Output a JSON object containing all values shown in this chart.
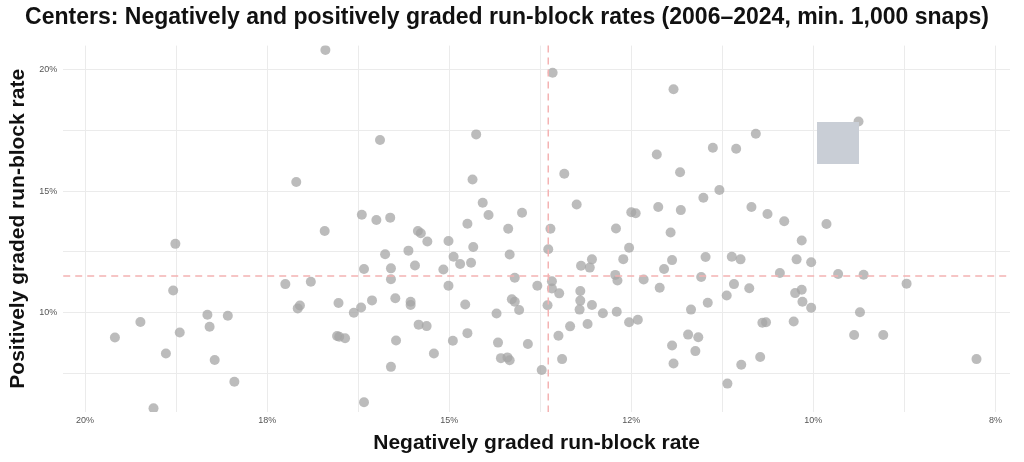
{
  "chart_data": {
    "type": "scatter",
    "title": "Centers: Negatively and positively graded run-block rates (2006–2024, min. 1,000 snaps)",
    "xlabel": "Negatively graded run-block rate",
    "ylabel": "Positively graded run-block rate",
    "xlim": [
      20.3,
      7.3
    ],
    "xticks": [
      {
        "value": 20,
        "label": "20%"
      },
      {
        "value": 18.75,
        "label": null
      },
      {
        "value": 17.5,
        "label": "18%"
      },
      {
        "value": 16.25,
        "label": null
      },
      {
        "value": 15,
        "label": "15%"
      },
      {
        "value": 13.75,
        "label": null
      },
      {
        "value": 12.5,
        "label": "12%"
      },
      {
        "value": 11.25,
        "label": null
      },
      {
        "value": 10,
        "label": "10%"
      },
      {
        "value": 8.75,
        "label": null
      },
      {
        "value": 7.5,
        "label": "8%"
      }
    ],
    "ylim": [
      5.9,
      21
    ],
    "yticks": [
      {
        "value": 7.5,
        "label": null
      },
      {
        "value": 10,
        "label": "10%"
      },
      {
        "value": 12.5,
        "label": null
      },
      {
        "value": 15,
        "label": "15%"
      },
      {
        "value": 17.5,
        "label": null
      },
      {
        "value": 20,
        "label": "20%"
      }
    ],
    "grid": true,
    "marker": "circle",
    "ref_lines": [
      {
        "axis": "x",
        "value": 13.64,
        "color": "#f4b3b3",
        "line_style": "dashed"
      },
      {
        "axis": "y",
        "value": 11.5,
        "color": "#f4b3b3",
        "line_style": "dashed"
      }
    ],
    "series": [
      {
        "color": "#a6a6a6",
        "x": [
          17.1,
          18.76,
          17.25,
          18.79,
          17.05,
          17.08,
          19.24,
          18.32,
          18.04,
          18.29,
          19.59,
          18.7,
          18.89,
          18.22,
          17.95,
          19.06,
          16.7,
          15.95,
          14.63,
          14.68,
          16.71,
          16.2,
          16.0,
          15.81,
          14.54,
          14.46,
          14.0,
          14.75,
          14.19,
          15.43,
          15.39,
          15.3,
          15.01,
          14.67,
          15.88,
          15.56,
          14.17,
          14.94,
          14.85,
          14.7,
          15.47,
          16.17,
          15.8,
          15.08,
          15.8,
          14.1,
          16.9,
          15.01,
          13.79,
          15.74,
          16.06,
          16.52,
          15.53,
          15.53,
          14.14,
          14.1,
          14.78,
          14.04,
          16.21,
          16.31,
          14.35,
          15.42,
          15.31,
          14.75,
          16.54,
          16.51,
          16.43,
          15.73,
          14.95,
          14.33,
          13.92,
          15.21,
          14.29,
          14.2,
          14.17,
          15.8,
          13.73,
          16.17,
          13.58,
          11.92,
          10.79,
          11.38,
          11.06,
          12.15,
          13.42,
          11.83,
          11.29,
          13.25,
          12.13,
          11.82,
          11.51,
          10.85,
          10.63,
          12.5,
          12.44,
          13.61,
          12.71,
          11.96,
          13.64,
          12.53,
          12.61,
          13.04,
          13.19,
          13.07,
          11.94,
          11.48,
          11.12,
          11.0,
          12.05,
          12.72,
          12.69,
          12.33,
          11.54,
          13.59,
          13.59,
          13.49,
          13.2,
          13.2,
          12.11,
          11.09,
          10.88,
          11.19,
          11.45,
          13.65,
          13.04,
          13.21,
          11.68,
          12.89,
          12.7,
          12.53,
          12.41,
          13.1,
          13.34,
          10.7,
          13.5,
          11.72,
          11.58,
          11.94,
          11.62,
          13.45,
          11.92,
          10.99,
          10.73,
          11.18,
          9.38,
          10.4,
          9.82,
          10.16,
          10.23,
          10.03,
          10.46,
          9.66,
          9.31,
          8.72,
          10.25,
          10.16,
          10.15,
          10.03,
          9.36,
          10.65,
          10.27,
          9.44,
          9.04,
          7.76
        ],
        "values": [
          15.38,
          12.83,
          11.17,
          10.91,
          10.29,
          10.17,
          9.61,
          9.91,
          9.87,
          9.41,
          8.97,
          9.18,
          8.31,
          8.04,
          7.15,
          6.05,
          20.82,
          17.11,
          17.34,
          15.48,
          13.36,
          14.03,
          13.81,
          13.91,
          14.52,
          14.02,
          14.11,
          13.66,
          13.45,
          13.36,
          13.27,
          12.93,
          12.95,
          12.7,
          12.4,
          12.55,
          12.39,
          12.3,
          12.0,
          12.05,
          11.94,
          11.79,
          11.82,
          11.77,
          11.37,
          11.43,
          11.27,
          11.1,
          11.1,
          10.59,
          10.5,
          10.39,
          10.44,
          10.31,
          10.55,
          10.44,
          10.33,
          10.1,
          10.21,
          9.99,
          9.96,
          9.5,
          9.44,
          9.15,
          9.03,
          9.0,
          8.94,
          8.85,
          8.84,
          8.76,
          8.7,
          8.31,
          8.12,
          8.15,
          8.03,
          7.76,
          7.63,
          6.3,
          19.88,
          19.2,
          17.37,
          16.79,
          16.75,
          16.51,
          15.72,
          15.78,
          15.05,
          14.45,
          14.35,
          14.22,
          14.73,
          14.35,
          14.06,
          14.13,
          14.09,
          13.45,
          13.46,
          13.3,
          12.61,
          12.67,
          12.2,
          12.19,
          11.93,
          11.85,
          12.16,
          12.29,
          12.3,
          12.19,
          11.79,
          11.55,
          11.32,
          11.36,
          11.46,
          11.29,
          10.99,
          10.79,
          10.89,
          10.49,
          11.02,
          11.17,
          11.0,
          10.7,
          10.4,
          10.3,
          10.31,
          10.12,
          10.12,
          9.97,
          10.03,
          9.6,
          9.7,
          9.53,
          9.43,
          9.58,
          9.04,
          9.09,
          8.98,
          8.64,
          8.41,
          8.08,
          7.9,
          7.85,
          8.17,
          7.07,
          17.87,
          13.76,
          13.65,
          12.97,
          12.19,
          12.07,
          11.63,
          11.59,
          11.56,
          11.19,
          10.8,
          10.94,
          10.44,
          10.2,
          10.01,
          9.6,
          9.63,
          9.07,
          9.07,
          8.08
        ]
      }
    ]
  }
}
